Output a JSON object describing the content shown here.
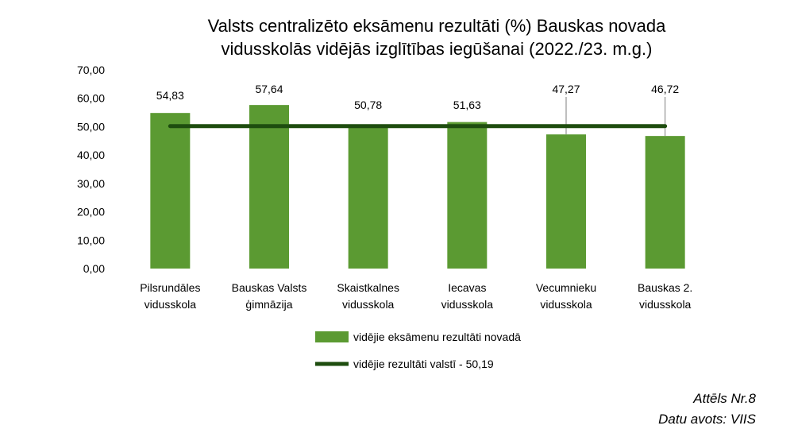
{
  "chart_data": {
    "type": "bar",
    "title": "Valsts centralizēto eksāmenu rezultāti (%) Bauskas novada vidusskolās vidējās izglītības iegūšanai (2022./23. m.g.)",
    "title_lines": [
      "Valsts centralizēto eksāmenu rezultāti (%) Bauskas novada",
      "vidusskolās vidējās izglītības iegūšanai (2022./23. m.g.)"
    ],
    "categories": [
      [
        "Pilsrundāles",
        "vidusskola"
      ],
      [
        "Bauskas Valsts",
        "ģimnāzija"
      ],
      [
        "Skaistkalnes",
        "vidusskola"
      ],
      [
        "Iecavas",
        "vidusskola"
      ],
      [
        "Vecumnieku",
        "vidusskola"
      ],
      [
        "Bauskas 2.",
        "vidusskola"
      ]
    ],
    "series": [
      {
        "name": "vidējie eksāmenu rezultāti novadā",
        "type": "bar",
        "color": "#5b9a32",
        "values": [
          54.83,
          57.64,
          50.78,
          51.63,
          47.27,
          46.72
        ],
        "labels": [
          "54,83",
          "57,64",
          "50,78",
          "51,63",
          "47,27",
          "46,72"
        ]
      },
      {
        "name": "vidējie rezultāti valstī - 50,19",
        "type": "line",
        "color": "#1e4d0f",
        "value": 50.19
      }
    ],
    "yticks": [
      "0,00",
      "10,00",
      "20,00",
      "30,00",
      "40,00",
      "50,00",
      "60,00",
      "70,00"
    ],
    "ylim": [
      0,
      70
    ],
    "grid": false,
    "legend_position": "bottom"
  },
  "captions": {
    "figure": "Attēls Nr.8",
    "source": "Datu avots: VIIS"
  }
}
